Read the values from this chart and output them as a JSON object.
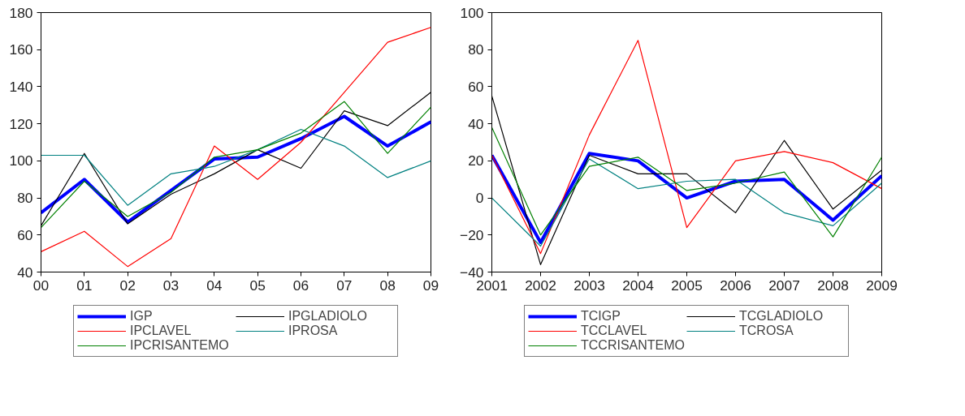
{
  "chart_data": [
    {
      "type": "line",
      "categories": [
        "00",
        "01",
        "02",
        "03",
        "04",
        "05",
        "06",
        "07",
        "08",
        "09"
      ],
      "ylim": [
        40,
        180
      ],
      "yticks": [
        40,
        60,
        80,
        100,
        120,
        140,
        160,
        180
      ],
      "grid": false,
      "legend": "bottom",
      "series": [
        {
          "name": "IGP",
          "color": "#0000ff",
          "values": [
            72,
            90,
            67,
            84,
            101,
            102,
            112,
            124,
            108,
            121
          ]
        },
        {
          "name": "IPGLADIOLO",
          "color": "#000000",
          "values": [
            65,
            104,
            66,
            82,
            93,
            106,
            96,
            127,
            119,
            137
          ]
        },
        {
          "name": "IPCLAVEL",
          "color": "#ff0000",
          "values": [
            51,
            62,
            43,
            58,
            108,
            90,
            110,
            137,
            164,
            172
          ]
        },
        {
          "name": "IPROSA",
          "color": "#008080",
          "values": [
            103,
            103,
            76,
            93,
            97,
            106,
            117,
            108,
            91,
            100
          ]
        },
        {
          "name": "IPCRISANTEMO",
          "color": "#008000",
          "values": [
            64,
            89,
            70,
            83,
            102,
            106,
            115,
            132,
            104,
            129
          ]
        }
      ]
    },
    {
      "type": "line",
      "categories": [
        "2001",
        "2002",
        "2003",
        "2004",
        "2005",
        "2006",
        "2007",
        "2008",
        "2009"
      ],
      "ylim": [
        -40,
        100
      ],
      "yticks": [
        -40,
        -20,
        0,
        20,
        40,
        60,
        80,
        100
      ],
      "grid": false,
      "legend": "bottom",
      "series": [
        {
          "name": "TCIGP",
          "color": "#0000ff",
          "values": [
            23,
            -24,
            24,
            20,
            0,
            9,
            10,
            -12,
            12
          ]
        },
        {
          "name": "TCGLADIOLO",
          "color": "#000000",
          "values": [
            55,
            -36,
            23,
            13,
            13,
            -8,
            31,
            -6,
            15
          ]
        },
        {
          "name": "TCCLAVEL",
          "color": "#ff0000",
          "values": [
            23,
            -30,
            34,
            85,
            -16,
            20,
            25,
            19,
            5
          ]
        },
        {
          "name": "TCROSA",
          "color": "#008080",
          "values": [
            0,
            -26,
            21,
            5,
            9,
            10,
            -8,
            -15,
            8
          ]
        },
        {
          "name": "TCCRISANTEMO",
          "color": "#008000",
          "values": [
            38,
            -20,
            17,
            22,
            4,
            8,
            14,
            -21,
            22
          ]
        }
      ]
    }
  ]
}
